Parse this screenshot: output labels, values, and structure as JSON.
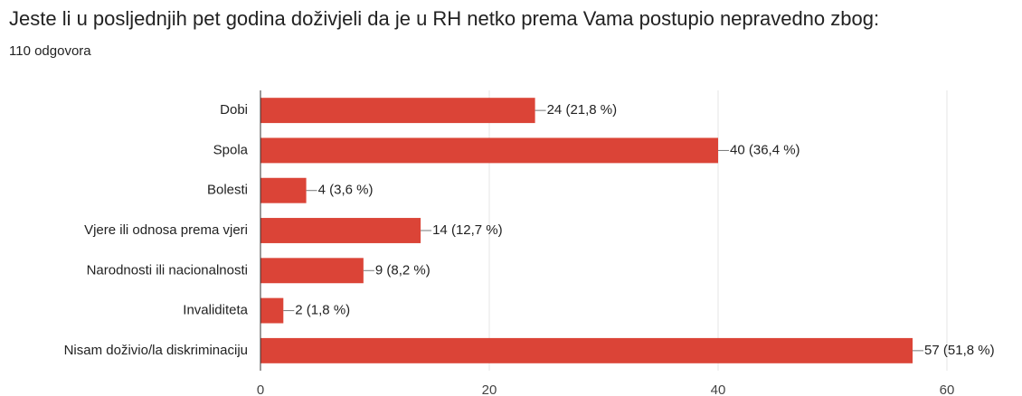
{
  "chart_data": {
    "type": "bar",
    "orientation": "horizontal",
    "title": "Jeste li u posljednjih pet godina doživjeli da je u RH netko prema Vama postupio nepravedno zbog:",
    "subtitle": "110 odgovora",
    "categories": [
      "Dobi",
      "Spola",
      "Bolesti",
      "Vjere ili odnosa prema vjeri",
      "Narodnosti ili nacionalnosti",
      "Invaliditeta",
      "Nisam doživio/la diskriminaciju"
    ],
    "values": [
      24,
      40,
      4,
      14,
      9,
      2,
      57
    ],
    "value_labels": [
      "24 (21,8 %)",
      "40 (36,4 %)",
      "4 (3,6 %)",
      "14 (12,7 %)",
      "9 (8,2 %)",
      "2 (1,8 %)",
      "57 (51,8 %)"
    ],
    "color": "#db4437",
    "xlim": [
      0,
      60
    ],
    "xticks": [
      0,
      20,
      40,
      60
    ],
    "grid": true
  }
}
